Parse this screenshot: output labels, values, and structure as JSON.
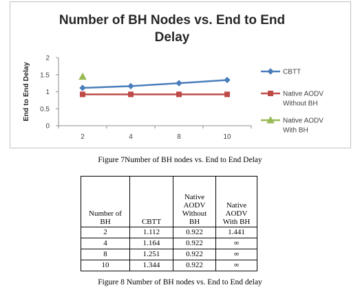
{
  "figure7_caption": "Figure 7Number of BH nodes vs. End to End Delay",
  "figure8_caption": "Figure 8 Number of BH nodes vs. End to End delay",
  "chart_data": {
    "type": "line",
    "title_lines": [
      "Number of BH Nodes vs. End to End",
      "Delay"
    ],
    "xlabel": "",
    "ylabel": "End to End Delay",
    "categories": [
      "2",
      "4",
      "8",
      "10"
    ],
    "yticks": [
      "0",
      "0.5",
      "1",
      "1.5",
      "2"
    ],
    "ylim": [
      0,
      2
    ],
    "grid": false,
    "legend_position": "right",
    "series": [
      {
        "name": "CBTT",
        "values": [
          1.112,
          1.164,
          1.251,
          1.344
        ],
        "color": "#4a7ebb",
        "marker": "diamond"
      },
      {
        "name_lines": [
          "Native AODV",
          "Without BH"
        ],
        "values": [
          0.922,
          0.922,
          0.922,
          0.922
        ],
        "color": "#be4b48",
        "marker": "square"
      },
      {
        "name_lines": [
          "Native AODV",
          "With BH"
        ],
        "values": [
          1.441,
          null,
          null,
          null
        ],
        "color": "#98b954",
        "marker": "triangle"
      }
    ]
  },
  "table": {
    "headers": [
      [
        "Number of",
        "BH"
      ],
      [
        "CBTT"
      ],
      [
        "Native",
        "AODV",
        "Without",
        "BH"
      ],
      [
        "Native",
        "AODV",
        "With BH"
      ]
    ],
    "rows": [
      [
        "2",
        "1.112",
        "0.922",
        "1.441"
      ],
      [
        "4",
        "1.164",
        "0.922",
        "∞"
      ],
      [
        "8",
        "1.251",
        "0.922",
        "∞"
      ],
      [
        "10",
        "1.344",
        "0.922",
        "∞"
      ]
    ]
  }
}
